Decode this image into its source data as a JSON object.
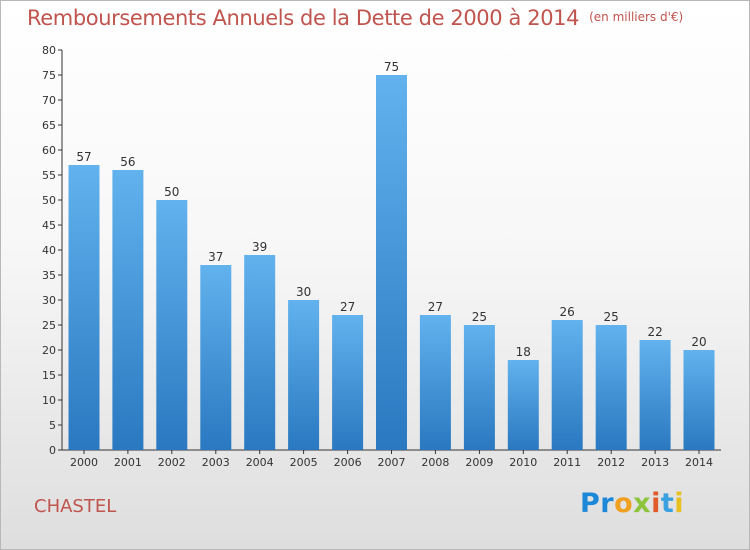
{
  "header": {
    "title": "Remboursements Annuels de la Dette de 2000 à 2014",
    "unit": "(en milliers d'€)"
  },
  "footer": {
    "commune": "CHASTEL",
    "logo_parts": [
      "Pr",
      "o",
      "x",
      "i",
      "t",
      "i"
    ]
  },
  "chart_data": {
    "type": "bar",
    "title": "Remboursements Annuels de la Dette de 2000 à 2014",
    "subtitle": "(en milliers d'€)",
    "xlabel": "",
    "ylabel": "",
    "categories": [
      "2000",
      "2001",
      "2002",
      "2003",
      "2004",
      "2005",
      "2006",
      "2007",
      "2008",
      "2009",
      "2010",
      "2011",
      "2012",
      "2013",
      "2014"
    ],
    "values": [
      57,
      56,
      50,
      37,
      39,
      30,
      27,
      75,
      27,
      25,
      18,
      26,
      25,
      22,
      20
    ],
    "ylim": [
      0,
      80
    ],
    "ytick_step": 5,
    "grid": false,
    "colors": {
      "bar_light": "#62b2ee",
      "bar_dark": "#2a78c0",
      "axis": "#333333",
      "title": "#c0544e"
    }
  }
}
